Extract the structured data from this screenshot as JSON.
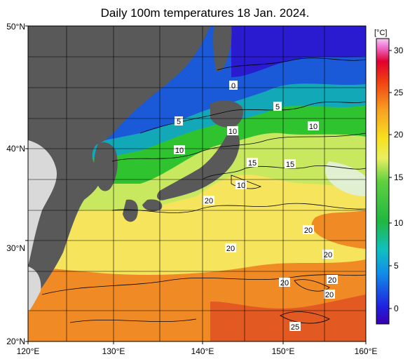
{
  "title": "Daily 100m temperatures 18 Jan. 2024.",
  "lat_labels": [
    "50°N",
    "40°N",
    "30°N",
    "20°N"
  ],
  "lon_labels": [
    "120°E",
    "130°E",
    "140°E",
    "150°E",
    "160°E"
  ],
  "colorbar": {
    "unit": "[°C]",
    "ticks": [
      "30",
      "25",
      "20",
      "15",
      "10",
      "5",
      "0"
    ],
    "range": [
      -2,
      32
    ]
  },
  "contour_labels": [
    "0",
    "5",
    "5",
    "10",
    "10",
    "10",
    "10",
    "15",
    "15",
    "10",
    "20",
    "20",
    "20",
    "20",
    "20",
    "20",
    "20",
    "25"
  ],
  "colors": {
    "land": "#595959",
    "outside_land": "#d9d9d9",
    "cold": "#2f1ad6",
    "mid": "#2fc42f",
    "warm": "#f0e85a",
    "hot": "#f09020"
  }
}
